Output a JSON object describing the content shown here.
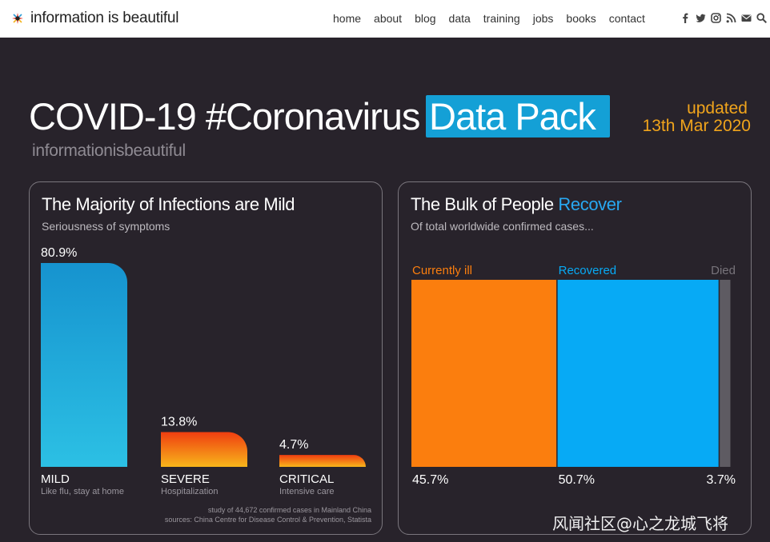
{
  "nav": {
    "logo": "information is beautiful",
    "links": [
      "home",
      "about",
      "blog",
      "data",
      "training",
      "jobs",
      "books",
      "contact"
    ],
    "social_icons": [
      "facebook-icon",
      "twitter-icon",
      "instagram-icon",
      "rss-icon",
      "email-icon",
      "search-icon"
    ]
  },
  "header": {
    "title": "COVID-19 #Coronavirus",
    "badge": "Data Pack",
    "byline": "informationisbeautiful",
    "updated_line1": "updated",
    "updated_line2": "13th Mar 2020"
  },
  "panel1": {
    "title": "The Majority of Infections are Mild",
    "subtitle": "Seriousness of symptoms",
    "source_line1": "study of 44,672 confirmed cases in Mainland China",
    "source_line2": "sources: China Centre for Disease Control & Prevention, Statista"
  },
  "panel2": {
    "title_a": "The Bulk of People ",
    "title_b": "Recover",
    "subtitle": "Of total worldwide confirmed cases..."
  },
  "watermark": "风闻社区@心之龙城飞将",
  "colors": {
    "background": "#28232b",
    "mild": "#1aa3d7",
    "severe": "#f25a12",
    "critical": "#f5a81b",
    "ill": "#fb7e0e",
    "recovered": "#07aaf5",
    "died": "#5e5b62",
    "accent_yellow": "#f0a41c"
  },
  "chart_data": [
    {
      "type": "bar",
      "categories": [
        "MILD",
        "SEVERE",
        "CRITICAL"
      ],
      "descriptions": [
        "Like flu, stay at home",
        "Hospitalization",
        "Intensive care"
      ],
      "values": [
        80.9,
        13.8,
        4.7
      ],
      "value_labels": [
        "80.9%",
        "13.8%",
        "4.7%"
      ],
      "title": "The Majority of Infections are Mild",
      "subtitle": "Seriousness of symptoms"
    },
    {
      "type": "bar",
      "stacked": true,
      "categories": [
        "Currently ill",
        "Recovered",
        "Died"
      ],
      "values": [
        45.7,
        50.7,
        3.7
      ],
      "value_labels": [
        "45.7%",
        "50.7%",
        "3.7%"
      ],
      "title": "The Bulk of People Recover",
      "subtitle": "Of total worldwide confirmed cases..."
    }
  ]
}
